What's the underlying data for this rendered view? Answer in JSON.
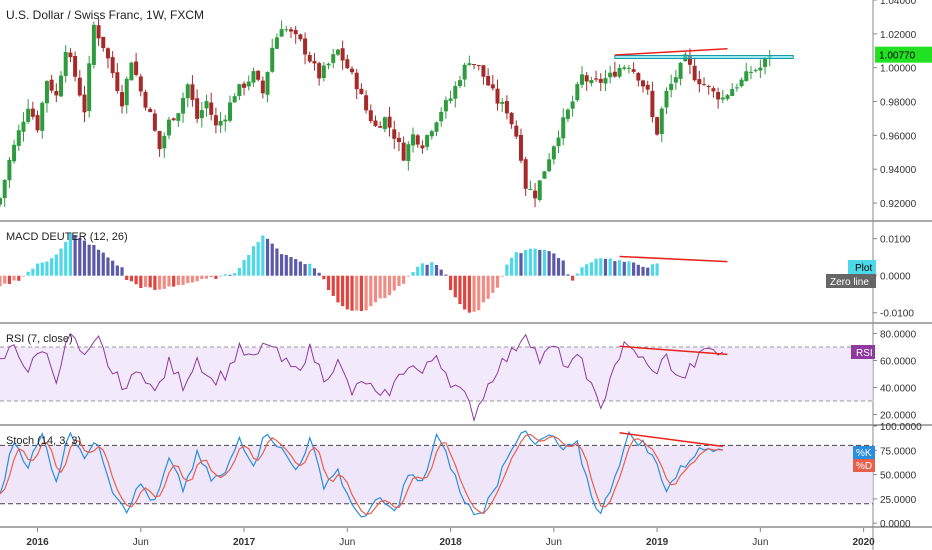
{
  "chart_data": [
    {
      "panel": "price",
      "type": "candlestick",
      "title": "U.S. Dollar / Swiss Franc, 1W, FXCM",
      "ylim": [
        0.91,
        1.04
      ],
      "yticks": [
        0.92,
        0.94,
        0.96,
        0.98,
        1.0,
        1.02,
        1.04
      ],
      "ytick_labels": [
        "0.92000",
        "0.94000",
        "0.96000",
        "0.98000",
        "1.00000",
        "1.02000",
        "1.04000"
      ],
      "last_price": "1.00770",
      "last_value": 1.0077,
      "close_path": [
        [
          0,
          0.923
        ],
        [
          2,
          0.945
        ],
        [
          4,
          0.962
        ],
        [
          6,
          0.978
        ],
        [
          8,
          0.965
        ],
        [
          10,
          0.993
        ],
        [
          12,
          0.983
        ],
        [
          14,
          1.012
        ],
        [
          16,
          0.995
        ],
        [
          18,
          0.975
        ],
        [
          20,
          1.025
        ],
        [
          22,
          1.013
        ],
        [
          24,
          0.997
        ],
        [
          26,
          0.98
        ],
        [
          28,
          1.005
        ],
        [
          30,
          0.986
        ],
        [
          32,
          0.972
        ],
        [
          34,
          0.952
        ],
        [
          36,
          0.968
        ],
        [
          38,
          0.975
        ],
        [
          40,
          0.99
        ],
        [
          42,
          0.97
        ],
        [
          44,
          0.98
        ],
        [
          46,
          0.965
        ],
        [
          48,
          0.972
        ],
        [
          50,
          0.985
        ],
        [
          52,
          0.99
        ],
        [
          54,
          0.996
        ],
        [
          56,
          0.985
        ],
        [
          58,
          1.012
        ],
        [
          60,
          1.025
        ],
        [
          62,
          1.02
        ],
        [
          64,
          1.015
        ],
        [
          66,
          1.005
        ],
        [
          68,
          0.995
        ],
        [
          70,
          1.002
        ],
        [
          72,
          1.01
        ],
        [
          74,
          1.0
        ],
        [
          76,
          0.99
        ],
        [
          78,
          0.975
        ],
        [
          80,
          0.965
        ],
        [
          82,
          0.97
        ],
        [
          84,
          0.96
        ],
        [
          86,
          0.948
        ],
        [
          88,
          0.96
        ],
        [
          90,
          0.955
        ],
        [
          92,
          0.965
        ],
        [
          94,
          0.975
        ],
        [
          96,
          0.982
        ],
        [
          98,
          0.995
        ],
        [
          100,
          1.005
        ],
        [
          102,
          1.0
        ],
        [
          104,
          0.99
        ],
        [
          106,
          0.98
        ],
        [
          108,
          0.975
        ],
        [
          110,
          0.96
        ],
        [
          111,
          0.948
        ],
        [
          112,
          0.93
        ],
        [
          114,
          0.925
        ],
        [
          116,
          0.94
        ],
        [
          118,
          0.955
        ],
        [
          120,
          0.968
        ],
        [
          122,
          0.98
        ],
        [
          124,
          0.995
        ],
        [
          126,
          0.99
        ],
        [
          128,
          0.992
        ],
        [
          130,
          0.995
        ],
        [
          132,
          1.0
        ],
        [
          134,
          1.002
        ],
        [
          136,
          0.995
        ],
        [
          138,
          0.985
        ],
        [
          139,
          0.97
        ],
        [
          140,
          0.962
        ],
        [
          141,
          0.975
        ],
        [
          142,
          0.985
        ],
        [
          144,
          0.995
        ],
        [
          146,
          1.005
        ],
        [
          148,
          0.995
        ],
        [
          150,
          0.99
        ],
        [
          152,
          0.985
        ],
        [
          154,
          0.982
        ],
        [
          156,
          0.988
        ],
        [
          158,
          0.992
        ],
        [
          160,
          0.998
        ],
        [
          162,
          1.0
        ],
        [
          164,
          1.008
        ]
      ]
    },
    {
      "panel": "macd",
      "type": "histogram",
      "title": "MACD DEUTER (12, 26)",
      "ylim": [
        -0.0125,
        0.0145
      ],
      "yticks": [
        -0.01,
        0.0,
        0.01
      ],
      "ytick_labels": [
        "-0.0100",
        "0.0000",
        "0.0100"
      ],
      "legend": [
        "Plot",
        "Zero line"
      ],
      "colors": {
        "up_strong": "#4dd8e8",
        "up_weak": "#5b59a8",
        "down_strong": "#e0443e",
        "down_weak": "#f08c84"
      },
      "value_path": [
        [
          0,
          -0.003
        ],
        [
          4,
          -0.001
        ],
        [
          6,
          0.001
        ],
        [
          8,
          0.003
        ],
        [
          10,
          0.004
        ],
        [
          12,
          0.006
        ],
        [
          14,
          0.009
        ],
        [
          15,
          0.0115
        ],
        [
          17,
          0.01
        ],
        [
          20,
          0.008
        ],
        [
          22,
          0.006
        ],
        [
          24,
          0.004
        ],
        [
          26,
          0.002
        ],
        [
          27,
          -0.001
        ],
        [
          30,
          -0.003
        ],
        [
          34,
          -0.004
        ],
        [
          36,
          -0.003
        ],
        [
          40,
          -0.002
        ],
        [
          44,
          -0.001
        ],
        [
          48,
          0.0
        ],
        [
          50,
          0.001
        ],
        [
          52,
          0.004
        ],
        [
          54,
          0.008
        ],
        [
          56,
          0.0105
        ],
        [
          58,
          0.009
        ],
        [
          60,
          0.006
        ],
        [
          62,
          0.005
        ],
        [
          64,
          0.004
        ],
        [
          66,
          0.003
        ],
        [
          68,
          0.001
        ],
        [
          69,
          -0.001
        ],
        [
          70,
          -0.004
        ],
        [
          72,
          -0.007
        ],
        [
          74,
          -0.009
        ],
        [
          76,
          -0.0095
        ],
        [
          78,
          -0.009
        ],
        [
          80,
          -0.007
        ],
        [
          82,
          -0.006
        ],
        [
          84,
          -0.004
        ],
        [
          86,
          -0.002
        ],
        [
          88,
          0.001
        ],
        [
          90,
          0.003
        ],
        [
          92,
          0.0035
        ],
        [
          94,
          0.002
        ],
        [
          95,
          0.0
        ],
        [
          96,
          -0.004
        ],
        [
          98,
          -0.008
        ],
        [
          100,
          -0.01
        ],
        [
          102,
          -0.009
        ],
        [
          104,
          -0.006
        ],
        [
          106,
          -0.003
        ],
        [
          107,
          0.0
        ],
        [
          108,
          0.003
        ],
        [
          110,
          0.006
        ],
        [
          112,
          0.007
        ],
        [
          114,
          0.0075
        ],
        [
          116,
          0.007
        ],
        [
          118,
          0.006
        ],
        [
          120,
          0.004
        ],
        [
          121,
          0.0
        ],
        [
          122,
          -0.001
        ],
        [
          124,
          0.002
        ],
        [
          126,
          0.004
        ],
        [
          128,
          0.005
        ],
        [
          130,
          0.0045
        ],
        [
          132,
          0.004
        ],
        [
          134,
          0.0035
        ],
        [
          136,
          0.003
        ],
        [
          138,
          0.0025
        ],
        [
          140,
          0.003
        ]
      ]
    },
    {
      "panel": "rsi",
      "type": "line",
      "title": "RSI (7, close)",
      "ylim": [
        13,
        87
      ],
      "yticks": [
        20,
        40,
        60,
        80
      ],
      "ytick_labels": [
        "20.0000",
        "40.0000",
        "60.0000",
        "80.0000"
      ],
      "bands": [
        30,
        70
      ],
      "legend": [
        "RSI"
      ],
      "color": "#8e3aa0",
      "value_path": [
        [
          0,
          58
        ],
        [
          3,
          72
        ],
        [
          6,
          52
        ],
        [
          9,
          70
        ],
        [
          12,
          48
        ],
        [
          15,
          80
        ],
        [
          18,
          60
        ],
        [
          21,
          75
        ],
        [
          24,
          50
        ],
        [
          27,
          40
        ],
        [
          30,
          55
        ],
        [
          33,
          35
        ],
        [
          36,
          58
        ],
        [
          39,
          42
        ],
        [
          42,
          62
        ],
        [
          45,
          45
        ],
        [
          48,
          50
        ],
        [
          51,
          68
        ],
        [
          54,
          60
        ],
        [
          57,
          74
        ],
        [
          60,
          60
        ],
        [
          63,
          52
        ],
        [
          66,
          68
        ],
        [
          69,
          48
        ],
        [
          72,
          58
        ],
        [
          75,
          36
        ],
        [
          78,
          45
        ],
        [
          81,
          30
        ],
        [
          84,
          42
        ],
        [
          87,
          58
        ],
        [
          90,
          50
        ],
        [
          93,
          65
        ],
        [
          96,
          45
        ],
        [
          99,
          33
        ],
        [
          101,
          20
        ],
        [
          103,
          35
        ],
        [
          106,
          55
        ],
        [
          109,
          65
        ],
        [
          112,
          82
        ],
        [
          115,
          60
        ],
        [
          118,
          70
        ],
        [
          121,
          55
        ],
        [
          124,
          62
        ],
        [
          126,
          40
        ],
        [
          128,
          22
        ],
        [
          130,
          50
        ],
        [
          133,
          70
        ],
        [
          136,
          65
        ],
        [
          139,
          50
        ],
        [
          142,
          62
        ],
        [
          145,
          45
        ],
        [
          148,
          58
        ],
        [
          151,
          70
        ],
        [
          154,
          63
        ]
      ]
    },
    {
      "panel": "stoch",
      "type": "line",
      "title": "Stoch (14, 3, 3)",
      "ylim": [
        -5,
        100
      ],
      "yticks": [
        0,
        25,
        50,
        75,
        100
      ],
      "ytick_labels": [
        "0.0000",
        "25.0000",
        "50.0000",
        "75.0000",
        "100.0000"
      ],
      "bands": [
        20,
        80
      ],
      "legend": [
        "%K",
        "%D"
      ],
      "series_colors": [
        "#2a8de0",
        "#e8604c"
      ],
      "value_path": [
        [
          0,
          30
        ],
        [
          3,
          85
        ],
        [
          6,
          60
        ],
        [
          9,
          90
        ],
        [
          12,
          45
        ],
        [
          15,
          95
        ],
        [
          18,
          70
        ],
        [
          21,
          82
        ],
        [
          24,
          35
        ],
        [
          27,
          15
        ],
        [
          30,
          40
        ],
        [
          33,
          20
        ],
        [
          36,
          65
        ],
        [
          39,
          35
        ],
        [
          42,
          70
        ],
        [
          45,
          45
        ],
        [
          48,
          50
        ],
        [
          51,
          88
        ],
        [
          54,
          62
        ],
        [
          57,
          95
        ],
        [
          60,
          75
        ],
        [
          63,
          55
        ],
        [
          66,
          85
        ],
        [
          69,
          40
        ],
        [
          72,
          55
        ],
        [
          75,
          15
        ],
        [
          78,
          8
        ],
        [
          81,
          25
        ],
        [
          84,
          10
        ],
        [
          87,
          50
        ],
        [
          90,
          40
        ],
        [
          93,
          90
        ],
        [
          96,
          60
        ],
        [
          99,
          20
        ],
        [
          102,
          8
        ],
        [
          105,
          30
        ],
        [
          108,
          70
        ],
        [
          111,
          95
        ],
        [
          114,
          80
        ],
        [
          117,
          90
        ],
        [
          120,
          75
        ],
        [
          123,
          80
        ],
        [
          126,
          30
        ],
        [
          128,
          8
        ],
        [
          131,
          50
        ],
        [
          134,
          90
        ],
        [
          137,
          82
        ],
        [
          140,
          60
        ],
        [
          142,
          35
        ],
        [
          145,
          55
        ],
        [
          148,
          72
        ],
        [
          151,
          78
        ],
        [
          154,
          80
        ]
      ]
    }
  ],
  "x_axis": {
    "labels": [
      "2016",
      "Jun",
      "2017",
      "Jun",
      "2018",
      "Jun",
      "2019",
      "Jun",
      "2020"
    ],
    "bold": [
      true,
      false,
      true,
      false,
      true,
      false,
      true,
      false,
      true
    ],
    "positions_index": [
      8,
      30,
      52,
      74,
      96,
      118,
      140,
      162,
      184
    ],
    "visible_index_range": [
      0,
      186
    ]
  },
  "annotations": [
    {
      "name": "resistance-zone",
      "panel": "price",
      "x0": 131,
      "x1": 169,
      "y0": 1.0057,
      "y1": 1.0072,
      "color": "#4dd8e8"
    },
    {
      "name": "price-trendline",
      "panel": "price",
      "from": [
        131,
        1.0075
      ],
      "to": [
        155,
        1.0112
      ],
      "color": "#e8231c"
    },
    {
      "name": "macd-divergence-line",
      "panel": "macd",
      "from": [
        132,
        0.0052
      ],
      "to": [
        155,
        0.0038
      ],
      "color": "#e8231c"
    },
    {
      "name": "rsi-divergence-line",
      "panel": "rsi",
      "from": [
        132,
        70.5
      ],
      "to": [
        155,
        64.5
      ],
      "color": "#e8231c"
    },
    {
      "name": "stoch-divergence-line",
      "panel": "stoch",
      "from": [
        132,
        93
      ],
      "to": [
        154,
        79
      ],
      "color": "#e8231c"
    }
  ],
  "colors": {
    "bull": "#2e9b3f",
    "bear": "#a52a2a",
    "last_price_bg": "#22e022",
    "separator": "#555555",
    "band_fill": "#eadcf8"
  }
}
